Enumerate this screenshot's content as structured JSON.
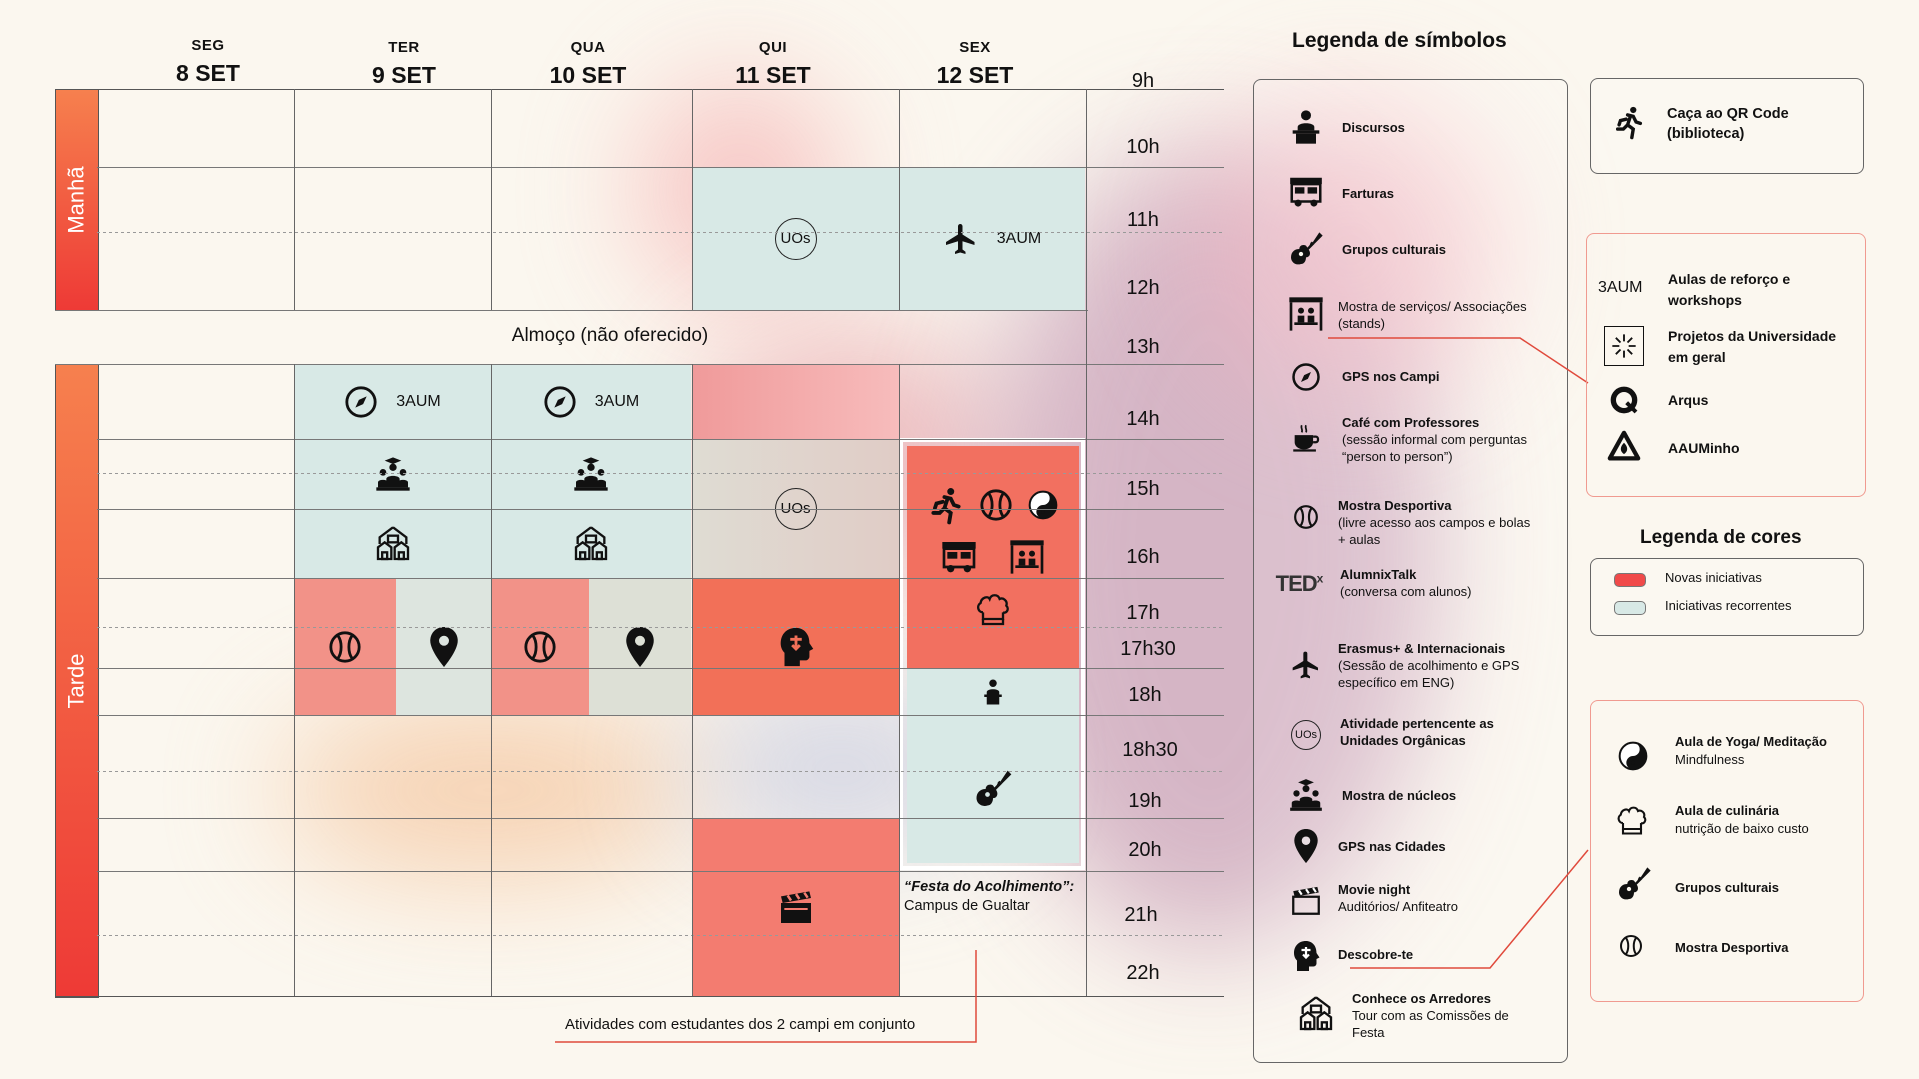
{
  "days": [
    {
      "name": "SEG",
      "date": "8 SET"
    },
    {
      "name": "TER",
      "date": "9 SET"
    },
    {
      "name": "QUA",
      "date": "10 SET"
    },
    {
      "name": "QUI",
      "date": "11 SET"
    },
    {
      "name": "SEX",
      "date": "12 SET"
    }
  ],
  "hours": [
    "9h",
    "10h",
    "11h",
    "12h",
    "13h",
    "14h",
    "15h",
    "16h",
    "17h",
    "17h30",
    "18h",
    "18h30",
    "19h",
    "20h",
    "21h",
    "22h"
  ],
  "sides": {
    "morning": "Manhã",
    "afternoon": "Tarde"
  },
  "lunch": "Almoço (não oferecido)",
  "cells": {
    "uos": "UOs",
    "aum": "3AUM"
  },
  "festa": {
    "title": "“Festa do Acolhimento”:",
    "subtitle": "Campus de Gualtar"
  },
  "footnote": "Atividades com estudantes dos 2 campi em conjunto",
  "legend_symbols": {
    "title": "Legenda de símbolos",
    "items": [
      {
        "icon": "speaker-icon",
        "label": "Discursos",
        "sub": ""
      },
      {
        "icon": "food-truck-icon",
        "label": "Farturas",
        "sub": ""
      },
      {
        "icon": "guitar-icon",
        "label": "Grupos culturais",
        "sub": ""
      },
      {
        "icon": "stand-icon",
        "label": "Mostra de serviços/ Associações",
        "sub": "(stands)"
      },
      {
        "icon": "compass-icon",
        "label": "GPS nos Campi",
        "sub": ""
      },
      {
        "icon": "coffee-icon",
        "label": "Café com Professores",
        "sub": "(sessão informal com perguntas “person to person”)"
      },
      {
        "icon": "ball-icon",
        "label": "Mostra Desportiva",
        "sub": "(livre acesso aos campos e bolas + aulas"
      },
      {
        "icon": "tedx-icon",
        "label": "AlumnixTalk",
        "sub": "(conversa com alunos)"
      },
      {
        "icon": "plane-icon",
        "label": "Erasmus+ & Internacionais",
        "sub": "(Sessão de acolhimento e GPS específico em ENG)"
      },
      {
        "icon": "uos-icon",
        "label": "Atividade pertencente as Unidades Orgânicas",
        "sub": ""
      },
      {
        "icon": "groups-icon",
        "label": "Mostra de núcleos",
        "sub": ""
      },
      {
        "icon": "pin-icon",
        "label": "GPS nas Cidades",
        "sub": ""
      },
      {
        "icon": "clapper-icon",
        "label": "Movie night",
        "sub": "Auditórios/ Anfiteatro"
      },
      {
        "icon": "head-icon",
        "label": "Descobre-te",
        "sub": ""
      },
      {
        "icon": "houses-icon",
        "label": "Conhece os Arredores",
        "sub": "Tour com as Comissões de Festa"
      }
    ]
  },
  "qr_box": {
    "label": "Caça ao QR Code (biblioteca)"
  },
  "extra_legend": [
    {
      "icon": "3AUM",
      "label": "Aulas de reforço e workshops"
    },
    {
      "icon": "burst-icon",
      "label": "Projetos da Universidade em geral"
    },
    {
      "icon": "arqus-icon",
      "label": "Arqus"
    },
    {
      "icon": "aauminho-icon",
      "label": "AAUMinho"
    }
  ],
  "legend_colors": {
    "title": "Legenda de cores",
    "items": [
      {
        "color": "#f0766a",
        "label": "Novas iniciativas"
      },
      {
        "color": "#d8e9e6",
        "label": "Iniciativas recorrentes"
      }
    ]
  },
  "festa_legend": [
    {
      "icon": "yinyang-icon",
      "label": "Aula de Yoga/ Meditação",
      "sub": "Mindfulness"
    },
    {
      "icon": "chef-icon",
      "label": "Aula de culinária",
      "sub": "nutrição de baixo custo"
    },
    {
      "icon": "guitar-icon",
      "label": "Grupos culturais",
      "sub": ""
    },
    {
      "icon": "ball-icon",
      "label": "Mostra Desportiva",
      "sub": ""
    }
  ]
}
